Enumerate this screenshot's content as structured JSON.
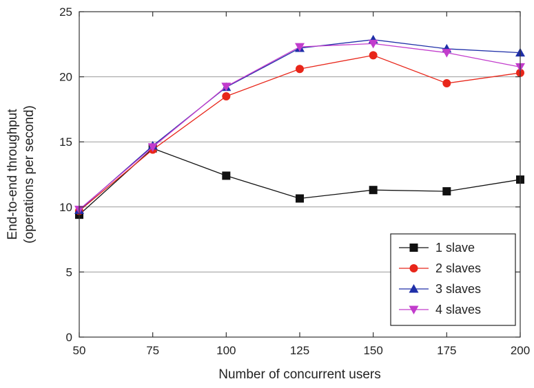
{
  "chart_data": {
    "type": "line",
    "title": "",
    "xlabel": "Number of concurrent users",
    "ylabel_lines": [
      "End-to-end throughput",
      "(operations per second)"
    ],
    "x": [
      50,
      75,
      100,
      125,
      150,
      175,
      200
    ],
    "xlim": [
      50,
      200
    ],
    "ylim": [
      0,
      25
    ],
    "x_ticks": [
      50,
      75,
      100,
      125,
      150,
      175,
      200
    ],
    "y_ticks": [
      0,
      5,
      10,
      15,
      20,
      25
    ],
    "grid": "horizontal",
    "legend_position": "bottom-right",
    "series": [
      {
        "name": "1 slave",
        "marker": "square",
        "color": "#111111",
        "values": [
          9.4,
          14.5,
          12.4,
          10.65,
          11.3,
          11.2,
          12.1
        ]
      },
      {
        "name": "2 slaves",
        "marker": "circle",
        "color": "#e8261a",
        "values": [
          9.7,
          14.4,
          18.5,
          20.6,
          21.65,
          19.5,
          20.3
        ]
      },
      {
        "name": "3 slaves",
        "marker": "triangle-up",
        "color": "#1f2fa8",
        "values": [
          9.75,
          14.7,
          19.2,
          22.2,
          22.85,
          22.15,
          21.85
        ]
      },
      {
        "name": "4 slaves",
        "marker": "triangle-down",
        "color": "#c23ccc",
        "values": [
          9.8,
          14.6,
          19.25,
          22.3,
          22.55,
          21.85,
          20.75
        ]
      }
    ]
  }
}
